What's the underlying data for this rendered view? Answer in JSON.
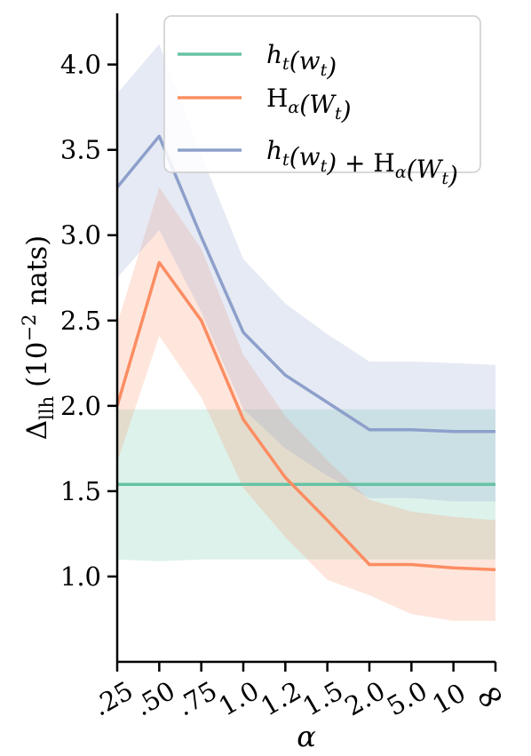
{
  "chart_data": {
    "type": "line",
    "xlabel": "α",
    "ylabel": "Δ_llh (10^-2 nats)",
    "categories": [
      ".25",
      ".50",
      ".75",
      "1.0",
      "1.2",
      "1.5",
      "2.0",
      "5.0",
      "10",
      "∞"
    ],
    "ylim": [
      0.5,
      4.3
    ],
    "y_ticks": [
      1.0,
      1.5,
      2.0,
      2.5,
      3.0,
      3.5,
      4.0
    ],
    "legend_position": "top-right",
    "grid": false,
    "series": [
      {
        "name": "h_t(w_t)",
        "label_parts": [
          "h",
          "t",
          "(w",
          "t",
          ")"
        ],
        "color": "#66c2a5",
        "values": [
          1.54,
          1.54,
          1.54,
          1.54,
          1.54,
          1.54,
          1.54,
          1.54,
          1.54,
          1.54
        ],
        "lower": [
          1.1,
          1.09,
          1.1,
          1.1,
          1.1,
          1.1,
          1.1,
          1.1,
          1.1,
          1.1
        ],
        "upper": [
          1.98,
          1.98,
          1.98,
          1.98,
          1.98,
          1.98,
          1.98,
          1.98,
          1.98,
          1.98
        ]
      },
      {
        "name": "H_α(W_t)",
        "color": "#fc8d62",
        "values": [
          2.0,
          2.84,
          2.5,
          1.92,
          1.58,
          1.33,
          1.07,
          1.07,
          1.05,
          1.04
        ],
        "lower": [
          1.67,
          2.41,
          2.05,
          1.52,
          1.23,
          0.98,
          0.89,
          0.78,
          0.74,
          0.74
        ],
        "upper": [
          2.48,
          3.28,
          2.92,
          2.3,
          1.94,
          1.68,
          1.45,
          1.38,
          1.35,
          1.33
        ]
      },
      {
        "name": "h_t(w_t) + H_α(W_t)",
        "color": "#8da0cb",
        "values": [
          3.28,
          3.58,
          2.99,
          2.43,
          2.18,
          2.02,
          1.86,
          1.86,
          1.85,
          1.85
        ],
        "lower": [
          2.75,
          3.03,
          2.55,
          1.98,
          1.75,
          1.59,
          1.46,
          1.46,
          1.44,
          1.44
        ],
        "upper": [
          3.83,
          4.12,
          3.47,
          2.86,
          2.6,
          2.42,
          2.26,
          2.26,
          2.25,
          2.24
        ]
      }
    ]
  }
}
